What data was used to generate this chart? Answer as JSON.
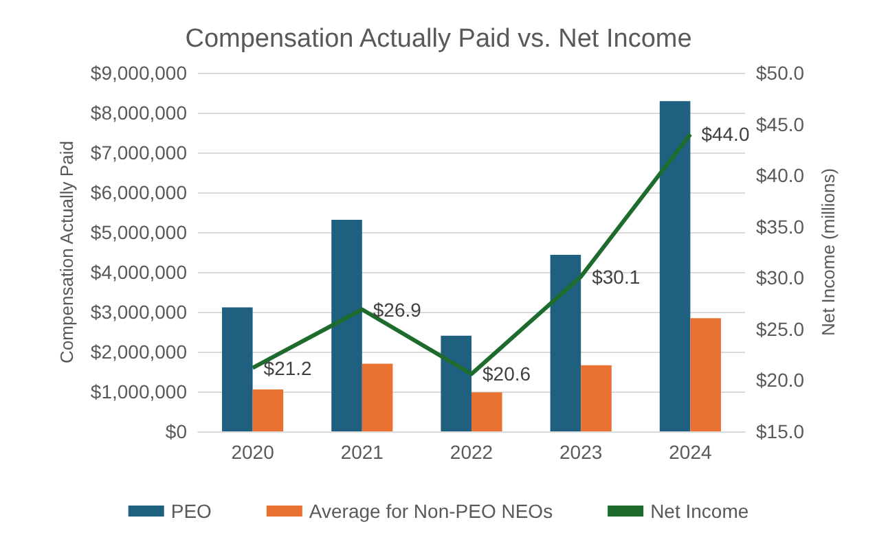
{
  "chart_data": {
    "type": "bar",
    "title": "Compensation Actually Paid vs. Net Income",
    "ylabel": "Compensation Actually Paid",
    "y2label": "Net Income (millions)",
    "categories": [
      "2020",
      "2021",
      "2022",
      "2023",
      "2024"
    ],
    "series": [
      {
        "name": "PEO",
        "color": "#1f5f7f",
        "values": [
          3110000,
          5310000,
          2400000,
          4430000,
          8290000
        ]
      },
      {
        "name": "Average for Non-PEO NEOs",
        "color": "#e97132",
        "values": [
          1050000,
          1700000,
          980000,
          1660000,
          2840000
        ]
      },
      {
        "name": "Net Income",
        "type": "line",
        "axis": "y2",
        "color": "#1e6b2e",
        "values": [
          21.2,
          26.9,
          20.6,
          30.1,
          44.0
        ],
        "value_labels": [
          "$21.2",
          "$26.9",
          "$20.6",
          "$30.1",
          "$44.0"
        ]
      }
    ],
    "ylim": [
      0,
      9000000
    ],
    "yticks": [
      {
        "value": 0,
        "label": "$0"
      },
      {
        "value": 1000000,
        "label": "$1,000,000"
      },
      {
        "value": 2000000,
        "label": "$2,000,000"
      },
      {
        "value": 3000000,
        "label": "$3,000,000"
      },
      {
        "value": 4000000,
        "label": "$4,000,000"
      },
      {
        "value": 5000000,
        "label": "$5,000,000"
      },
      {
        "value": 6000000,
        "label": "$6,000,000"
      },
      {
        "value": 7000000,
        "label": "$7,000,000"
      },
      {
        "value": 8000000,
        "label": "$8,000,000"
      },
      {
        "value": 9000000,
        "label": "$9,000,000"
      }
    ],
    "y2lim": [
      15,
      50
    ],
    "y2ticks": [
      {
        "value": 15,
        "label": "$15.0"
      },
      {
        "value": 20,
        "label": "$20.0"
      },
      {
        "value": 25,
        "label": "$25.0"
      },
      {
        "value": 30,
        "label": "$30.0"
      },
      {
        "value": 35,
        "label": "$35.0"
      },
      {
        "value": 40,
        "label": "$40.0"
      },
      {
        "value": 45,
        "label": "$45.0"
      },
      {
        "value": 50,
        "label": "$50.0"
      }
    ],
    "grid": "y",
    "legend": "bottom",
    "marker": "none"
  }
}
